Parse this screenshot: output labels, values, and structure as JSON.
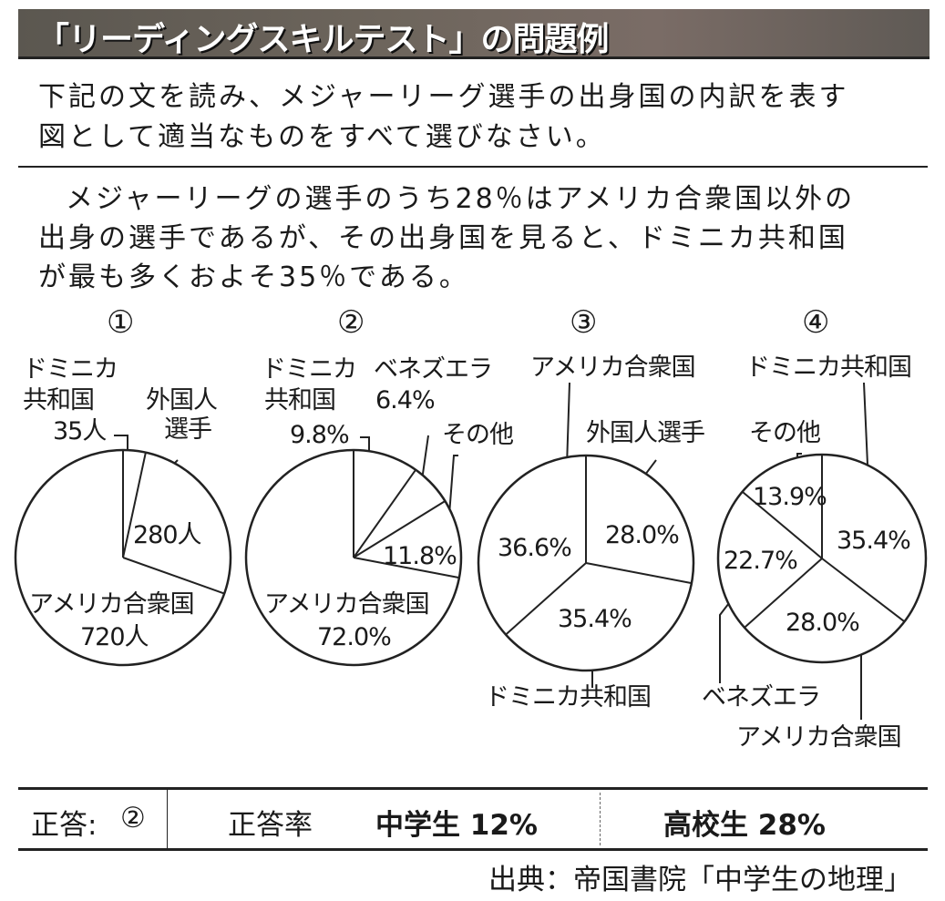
{
  "header": {
    "title": "「リーディングスキルテスト」の問題例"
  },
  "question": {
    "line1": "下記の文を読み、メジャーリーグ選手の出身国の内訳を表す",
    "line2": "図として適当なものをすべて選びなさい。"
  },
  "passage": {
    "line1": "メジャーリーグの選手のうち28％はアメリカ合衆国以外の",
    "line2": "出身の選手であるが、その出身国を見ると、ドミニカ共和国",
    "line3": "が最も多くおよそ35％である。"
  },
  "chart_data": [
    {
      "type": "pie",
      "title": "①",
      "slices": [
        {
          "label": "ドミニカ共和国",
          "label_a": "ドミニカ",
          "label_b": "共和国",
          "value": 35,
          "value_label": "35人"
        },
        {
          "label": "外国人選手",
          "label_a": "外国人",
          "label_b": "選手",
          "value": 280,
          "value_label": "280人"
        },
        {
          "label": "アメリカ合衆国",
          "value": 720,
          "value_label": "720人"
        }
      ]
    },
    {
      "type": "pie",
      "title": "②",
      "slices": [
        {
          "label": "ドミニカ共和国",
          "label_a": "ドミニカ",
          "label_b": "共和国",
          "value": 9.8,
          "value_label": "9.8%"
        },
        {
          "label": "ベネズエラ",
          "value": 6.4,
          "value_label": "6.4%"
        },
        {
          "label": "その他",
          "value": 11.8,
          "value_label": "11.8%"
        },
        {
          "label": "アメリカ合衆国",
          "value": 72.0,
          "value_label": "72.0%"
        }
      ]
    },
    {
      "type": "pie",
      "title": "③",
      "slices": [
        {
          "label": "外国人選手",
          "value": 28.0,
          "value_label": "28.0%"
        },
        {
          "label": "ドミニカ共和国",
          "value": 35.4,
          "value_label": "35.4%"
        },
        {
          "label": "アメリカ合衆国",
          "value": 36.6,
          "value_label": "36.6%"
        }
      ]
    },
    {
      "type": "pie",
      "title": "④",
      "slices": [
        {
          "label": "ドミニカ共和国",
          "value": 35.4,
          "value_label": "35.4%"
        },
        {
          "label": "アメリカ合衆国",
          "value": 28.0,
          "value_label": "28.0%"
        },
        {
          "label": "ベネズエラ",
          "value": 22.7,
          "value_label": "22.7%"
        },
        {
          "label": "その他",
          "value": 13.9,
          "value_label": "13.9%"
        }
      ]
    }
  ],
  "answer": {
    "label": "正答:",
    "value": "②",
    "rate_label": "正答率",
    "middle": "中学生 12%",
    "high": "高校生 28%"
  },
  "source": "出典：帝国書院「中学生の地理」"
}
